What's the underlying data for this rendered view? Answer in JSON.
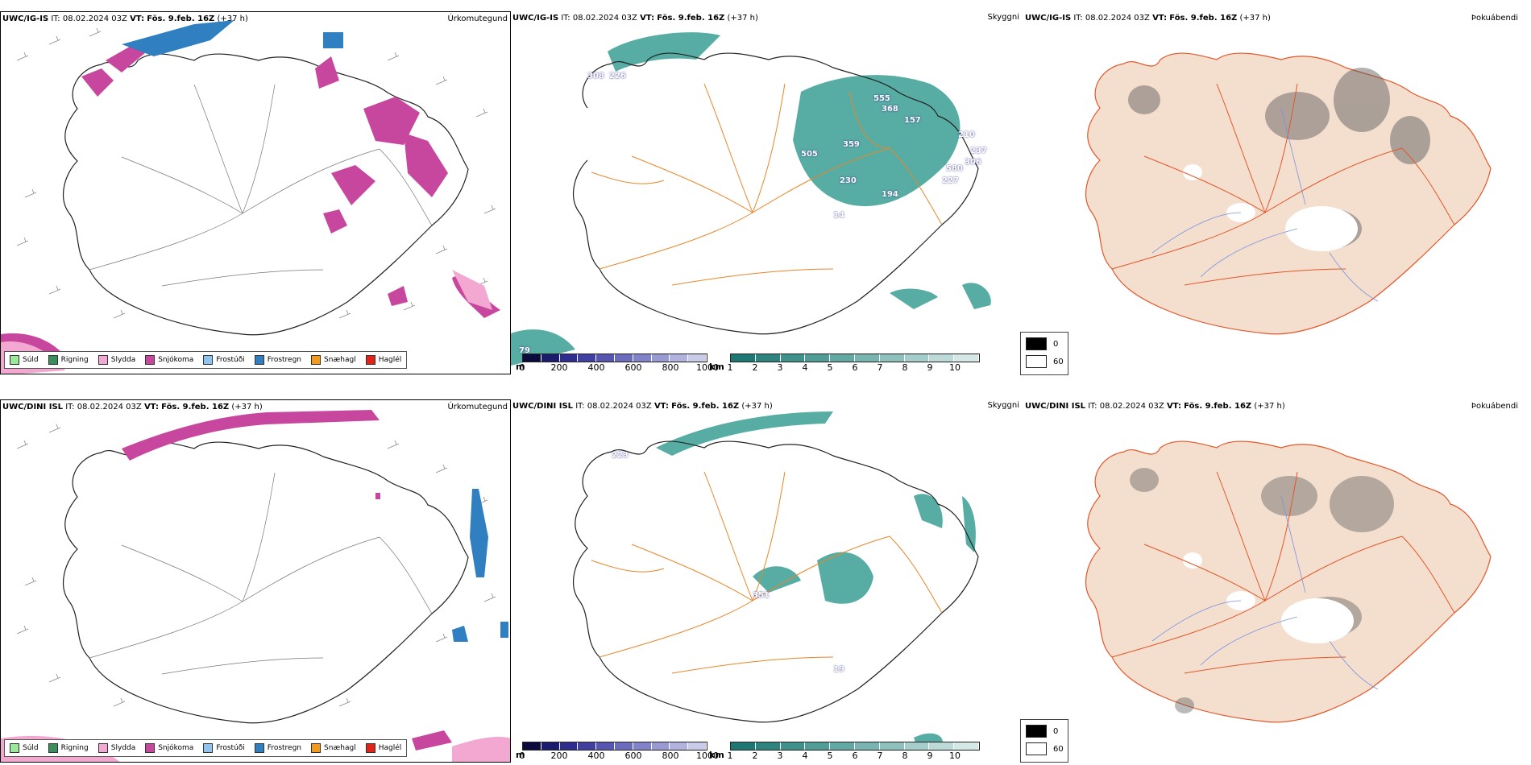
{
  "rows": [
    {
      "model": "UWC/IG-IS",
      "it_label": "IT:",
      "it_value": "08.02.2024 03Z",
      "vt_label": "VT:",
      "vt_value": "Fös. 9.feb. 16Z",
      "lead": "(+37 h)",
      "panels": {
        "precip_type": "Úrkomutegund",
        "sky": "Skyggni",
        "fog": "Þokuábendi"
      },
      "station_labels": [
        "308",
        "226",
        "555",
        "368",
        "157",
        "210",
        "237",
        "306",
        "580",
        "227",
        "194",
        "359",
        "505",
        "230",
        "14",
        "79"
      ]
    },
    {
      "model": "UWC/DINI ISL",
      "it_label": "IT:",
      "it_value": "08.02.2024 03Z",
      "vt_label": "VT:",
      "vt_value": "Fös. 9.feb. 16Z",
      "lead": "(+37 h)",
      "panels": {
        "precip_type": "Úrkomutegund",
        "sky": "Skyggni",
        "fog": "Þokuábendi"
      },
      "station_labels": [
        "223",
        "351",
        "19"
      ]
    }
  ],
  "precip_legend": [
    {
      "label": "Súld",
      "color": "#9be89b"
    },
    {
      "label": "Rigning",
      "color": "#3a8f5c"
    },
    {
      "label": "Slydda",
      "color": "#f2a8d0"
    },
    {
      "label": "Snjókoma",
      "color": "#c8479e"
    },
    {
      "label": "Frostúði",
      "color": "#8ec4ef"
    },
    {
      "label": "Frostregn",
      "color": "#2f7fc1"
    },
    {
      "label": "Snæhagl",
      "color": "#f39a1d"
    },
    {
      "label": "Haglél",
      "color": "#e2231a"
    }
  ],
  "visibility_m": {
    "unit": "m",
    "ticks": [
      "0",
      "200",
      "400",
      "600",
      "800",
      "1000"
    ],
    "colors": [
      "#0b0b3d",
      "#1c1c6e",
      "#2e2e8f",
      "#4040a0",
      "#5656b0",
      "#6c6cbd",
      "#8282c8",
      "#9a9ad3",
      "#b2b2de",
      "#cacae9"
    ]
  },
  "visibility_km": {
    "unit": "km",
    "ticks": [
      "1",
      "2",
      "3",
      "4",
      "5",
      "6",
      "7",
      "8",
      "9",
      "10"
    ],
    "colors": [
      "#1e7773",
      "#2f837f",
      "#40908b",
      "#519c97",
      "#63a8a3",
      "#78b4b0",
      "#8ec1bd",
      "#a5cdca",
      "#bddad8",
      "#d5e8e6"
    ]
  },
  "fog_legend": {
    "high": "0",
    "low": "60"
  },
  "colors": {
    "coast": "#111111",
    "roads": "#e8862a",
    "land_fog": "#f4dfcf",
    "fog_roads": "#e2572a",
    "rivers": "#7a94e0",
    "teal": "#3a9e94"
  }
}
